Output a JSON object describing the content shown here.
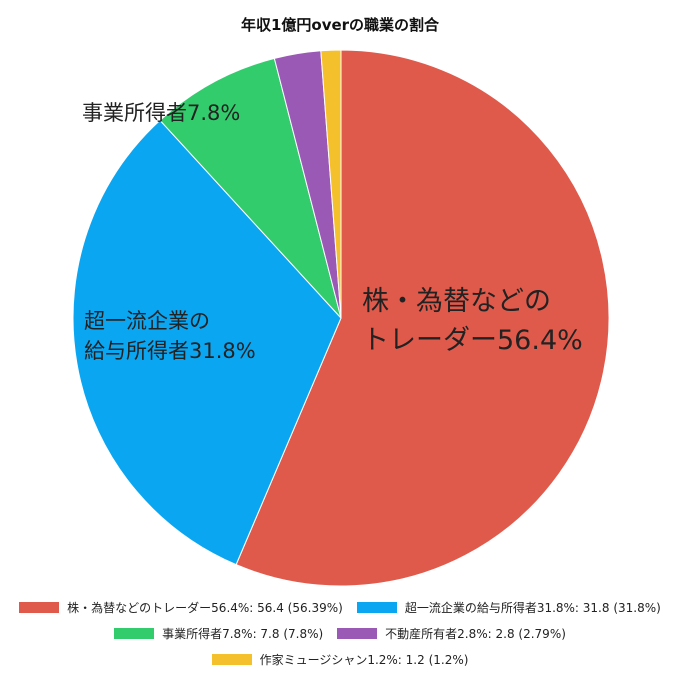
{
  "chart_data": {
    "type": "pie",
    "title": "年収1億円overの職業の割合",
    "slices": [
      {
        "name": "株・為替などのトレーダー56.4%",
        "value": 56.4,
        "percent": "56.39%",
        "color": "#e05a4c",
        "label_lines": [
          "株・為替などの",
          "トレーダー56.4%"
        ]
      },
      {
        "name": "超一流企業の給与所得者31.8%",
        "value": 31.8,
        "percent": "31.8%",
        "color": "#0ba6f1",
        "label_lines": [
          "超一流企業の",
          "給与所得者31.8%"
        ]
      },
      {
        "name": "事業所得者7.8%",
        "value": 7.8,
        "percent": "7.8%",
        "color": "#33cc6d",
        "label_lines": [
          "事業所得者7.8%"
        ]
      },
      {
        "name": "不動産所有者2.8%",
        "value": 2.8,
        "percent": "2.79%",
        "color": "#9b59b6",
        "label_lines": []
      },
      {
        "name": "作家ミュージシャン1.2%",
        "value": 1.2,
        "percent": "1.2%",
        "color": "#f4c02c",
        "label_lines": []
      }
    ],
    "start_angle_deg": 0,
    "direction": "clockwise",
    "legend_position": "bottom"
  }
}
